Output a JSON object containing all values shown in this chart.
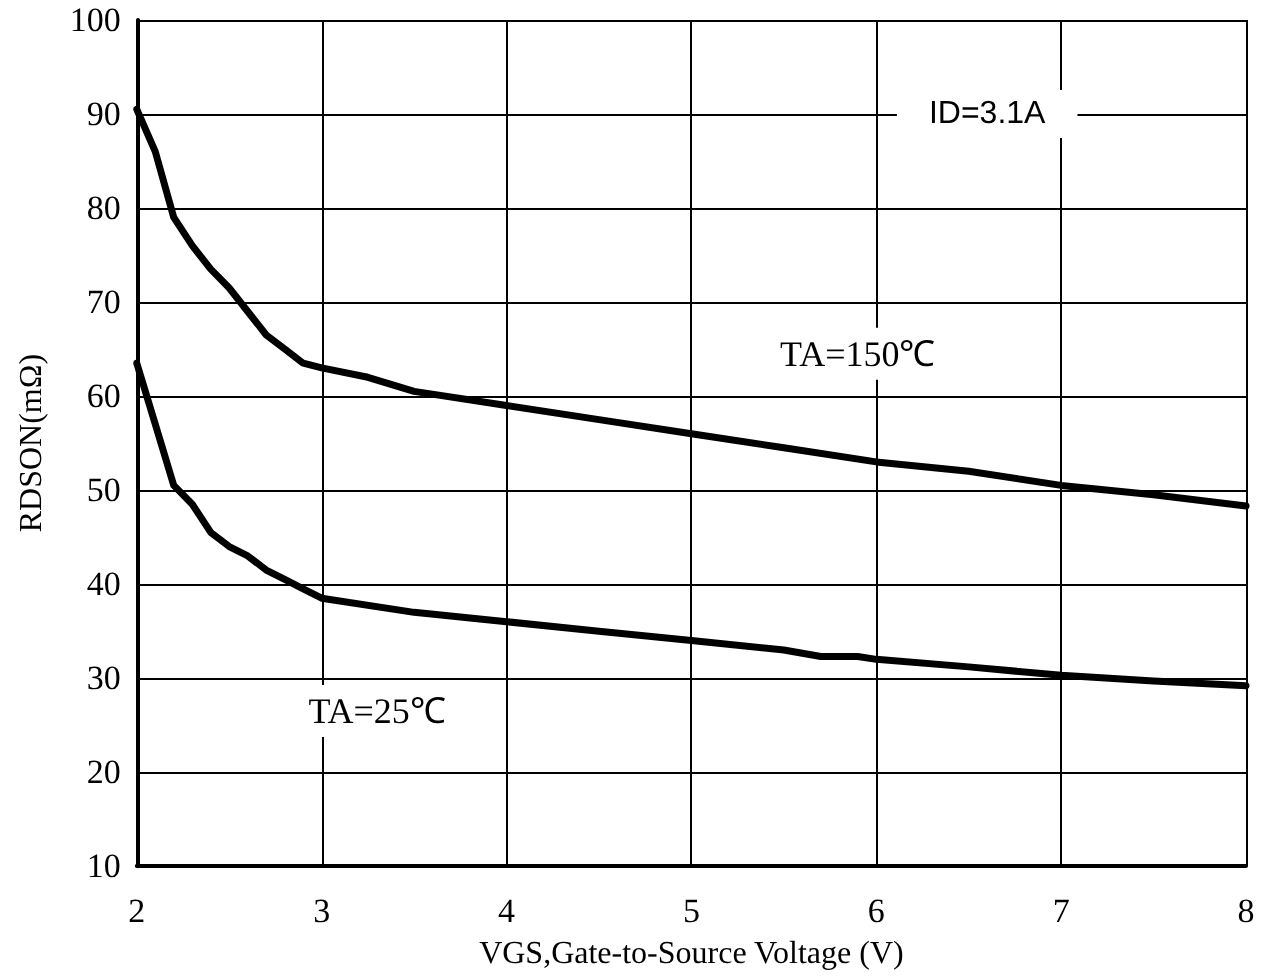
{
  "chart_data": {
    "type": "line",
    "xlabel": "VGS,Gate-to-Source Voltage (V)",
    "ylabel": "RDSON(mΩ)",
    "annotations": [
      "ID=3.1A"
    ],
    "series": [
      {
        "name": "TA=150℃",
        "color": "#000000",
        "x": [
          2,
          2.1,
          2.2,
          2.3,
          2.4,
          2.5,
          2.6,
          2.7,
          2.8,
          2.9,
          3,
          3.25,
          3.5,
          4,
          4.5,
          5,
          5.5,
          6,
          6.5,
          7,
          7.5,
          8
        ],
        "values": [
          90.5,
          86,
          79,
          76,
          73.5,
          71.5,
          69,
          66.5,
          65,
          63.5,
          63,
          62,
          60.5,
          59,
          57.5,
          56,
          54.5,
          53,
          52,
          50.5,
          49.5,
          48.3
        ]
      },
      {
        "name": "TA=25℃",
        "color": "#000000",
        "x": [
          2,
          2.1,
          2.2,
          2.3,
          2.4,
          2.5,
          2.6,
          2.7,
          2.8,
          2.9,
          3,
          3.5,
          4,
          4.5,
          5,
          5.5,
          5.7,
          5.9,
          6,
          6.5,
          7,
          7.5,
          8
        ],
        "values": [
          63.5,
          57,
          50.5,
          48.5,
          45.5,
          44,
          43,
          41.5,
          40.5,
          39.5,
          38.5,
          37,
          36,
          35,
          34,
          33,
          32.3,
          32.3,
          32,
          31.2,
          30.3,
          29.7,
          29.2
        ]
      }
    ],
    "xlim": [
      2,
      8
    ],
    "xticks": [
      2,
      3,
      4,
      5,
      6,
      7,
      8
    ],
    "ylim": [
      10,
      100
    ],
    "yticks": [
      10,
      20,
      30,
      40,
      50,
      60,
      70,
      80,
      90,
      100
    ],
    "grid": true,
    "legend": false,
    "marker": "none",
    "line_style": "solid"
  }
}
